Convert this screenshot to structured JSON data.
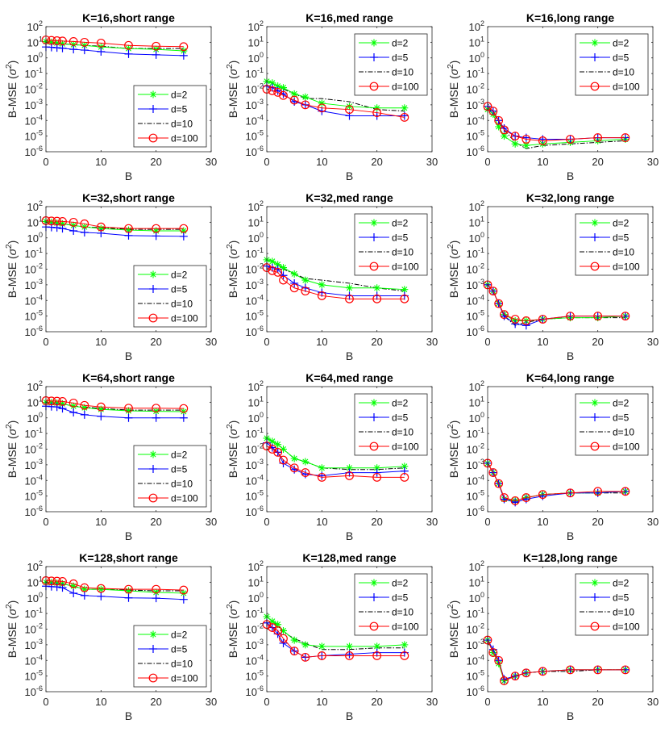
{
  "chart_data": {
    "type": "line",
    "layout": "4x3 grid",
    "x": [
      0,
      1,
      2,
      3,
      5,
      7,
      10,
      15,
      20,
      25
    ],
    "xlabel": "B",
    "ylabel": "B-MSE (σ²)",
    "xlim": [
      0,
      30
    ],
    "xticks": [
      "0",
      "10",
      "20",
      "30"
    ],
    "ylim": [
      1e-06,
      100
    ],
    "yscale": "log",
    "yticks": [
      "10^2",
      "10^1",
      "10^0",
      "10^-1",
      "10^-2",
      "10^-3",
      "10^-4",
      "10^-5",
      "10^-6"
    ],
    "legend": {
      "placement": "inside-lower-right (short range), inside-upper-right (med/long range)",
      "entries": [
        {
          "name": "d=2",
          "color": "#00ff00",
          "marker": "asterisk",
          "line": "solid"
        },
        {
          "name": "d=5",
          "color": "#0000ff",
          "marker": "plus",
          "line": "solid"
        },
        {
          "name": "d=10",
          "color": "#000000",
          "marker": "none",
          "line": "dash-dot"
        },
        {
          "name": "d=100",
          "color": "#ff0000",
          "marker": "circle",
          "line": "solid"
        }
      ]
    },
    "note": "series values are log10(B-MSE)",
    "panels": [
      {
        "title": "K=16,short range",
        "legend": "lower",
        "series": [
          {
            "name": "d=2",
            "values": [
              1.05,
              1.0,
              0.95,
              0.9,
              0.85,
              0.8,
              0.7,
              0.6,
              0.55,
              0.45
            ]
          },
          {
            "name": "d=5",
            "values": [
              0.7,
              0.68,
              0.65,
              0.62,
              0.55,
              0.5,
              0.4,
              0.25,
              0.2,
              0.15
            ]
          },
          {
            "name": "d=10",
            "values": [
              1.05,
              1.0,
              0.95,
              0.9,
              0.85,
              0.8,
              0.75,
              0.6,
              0.6,
              0.6
            ]
          },
          {
            "name": "d=100",
            "values": [
              1.15,
              1.12,
              1.1,
              1.08,
              1.05,
              1.0,
              0.95,
              0.8,
              0.75,
              0.72
            ]
          }
        ]
      },
      {
        "title": "K=16,med range",
        "legend": "upper",
        "series": [
          {
            "name": "d=2",
            "values": [
              -1.5,
              -1.6,
              -1.8,
              -1.9,
              -2.3,
              -2.5,
              -2.9,
              -3.1,
              -3.2,
              -3.2
            ]
          },
          {
            "name": "d=5",
            "values": [
              -1.8,
              -1.9,
              -2.1,
              -2.3,
              -2.8,
              -3.0,
              -3.4,
              -3.7,
              -3.7,
              -3.7
            ]
          },
          {
            "name": "d=10",
            "values": [
              -1.5,
              -1.6,
              -1.8,
              -2.0,
              -2.3,
              -2.6,
              -2.6,
              -2.8,
              -3.3,
              -3.4
            ]
          },
          {
            "name": "d=100",
            "values": [
              -2.0,
              -2.1,
              -2.2,
              -2.4,
              -2.7,
              -3.0,
              -3.2,
              -3.3,
              -3.5,
              -3.8
            ]
          }
        ]
      },
      {
        "title": "K=16,long range",
        "legend": "upper",
        "series": [
          {
            "name": "d=2",
            "values": [
              -3.3,
              -3.6,
              -4.4,
              -5.0,
              -5.5,
              -5.6,
              -5.5,
              -5.4,
              -5.3,
              -5.2
            ]
          },
          {
            "name": "d=5",
            "values": [
              -3.1,
              -3.4,
              -4.0,
              -4.5,
              -5.0,
              -5.1,
              -5.2,
              -5.2,
              -5.1,
              -5.1
            ]
          },
          {
            "name": "d=10",
            "values": [
              -3.2,
              -3.5,
              -4.1,
              -4.6,
              -5.4,
              -5.8,
              -5.6,
              -5.5,
              -5.4,
              -5.3
            ]
          },
          {
            "name": "d=100",
            "values": [
              -3.1,
              -3.4,
              -4.0,
              -4.6,
              -5.0,
              -5.2,
              -5.3,
              -5.2,
              -5.1,
              -5.1
            ]
          }
        ]
      },
      {
        "title": "K=32,short range",
        "legend": "lower",
        "series": [
          {
            "name": "d=2",
            "values": [
              1.05,
              1.0,
              0.95,
              0.9,
              0.8,
              0.7,
              0.6,
              0.5,
              0.45,
              0.45
            ]
          },
          {
            "name": "d=5",
            "values": [
              0.7,
              0.68,
              0.65,
              0.6,
              0.45,
              0.35,
              0.3,
              0.15,
              0.12,
              0.1
            ]
          },
          {
            "name": "d=10",
            "values": [
              1.05,
              1.0,
              0.95,
              0.9,
              0.8,
              0.7,
              0.65,
              0.55,
              0.55,
              0.55
            ]
          },
          {
            "name": "d=100",
            "values": [
              1.1,
              1.08,
              1.07,
              1.05,
              1.0,
              0.9,
              0.7,
              0.6,
              0.6,
              0.6
            ]
          }
        ]
      },
      {
        "title": "K=32,med range",
        "legend": "upper",
        "series": [
          {
            "name": "d=2",
            "values": [
              -1.4,
              -1.5,
              -1.7,
              -1.9,
              -2.3,
              -2.7,
              -3.0,
              -3.2,
              -3.2,
              -3.3
            ]
          },
          {
            "name": "d=5",
            "values": [
              -1.8,
              -1.9,
              -2.0,
              -2.4,
              -2.9,
              -3.2,
              -3.5,
              -3.7,
              -3.7,
              -3.7
            ]
          },
          {
            "name": "d=10",
            "values": [
              -1.4,
              -1.5,
              -1.7,
              -2.0,
              -2.3,
              -2.6,
              -2.7,
              -2.9,
              -3.2,
              -3.4
            ]
          },
          {
            "name": "d=100",
            "values": [
              -1.9,
              -2.1,
              -2.2,
              -2.7,
              -3.2,
              -3.4,
              -3.7,
              -3.9,
              -3.9,
              -3.9
            ]
          }
        ]
      },
      {
        "title": "K=32,long range",
        "legend": "upper",
        "series": [
          {
            "name": "d=2",
            "values": [
              -3.0,
              -3.4,
              -4.2,
              -4.9,
              -5.3,
              -5.3,
              -5.2,
              -5.1,
              -5.1,
              -5.0
            ]
          },
          {
            "name": "d=5",
            "values": [
              -3.0,
              -3.4,
              -4.2,
              -5.0,
              -5.5,
              -5.6,
              -5.2,
              -5.0,
              -5.0,
              -5.0
            ]
          },
          {
            "name": "d=10",
            "values": [
              -3.0,
              -3.4,
              -4.2,
              -5.0,
              -5.6,
              -5.4,
              -5.2,
              -5.1,
              -5.1,
              -5.1
            ]
          },
          {
            "name": "d=100",
            "values": [
              -3.0,
              -3.4,
              -4.2,
              -4.9,
              -5.2,
              -5.3,
              -5.2,
              -5.0,
              -5.0,
              -5.0
            ]
          }
        ]
      },
      {
        "title": "K=64,short range",
        "legend": "lower",
        "series": [
          {
            "name": "d=2",
            "values": [
              1.0,
              0.98,
              0.95,
              0.9,
              0.75,
              0.65,
              0.55,
              0.45,
              0.42,
              0.4
            ]
          },
          {
            "name": "d=5",
            "values": [
              0.75,
              0.72,
              0.7,
              0.6,
              0.35,
              0.2,
              0.1,
              0.0,
              0.0,
              0.0
            ]
          },
          {
            "name": "d=10",
            "values": [
              1.0,
              0.98,
              0.95,
              0.9,
              0.75,
              0.7,
              0.6,
              0.5,
              0.5,
              0.5
            ]
          },
          {
            "name": "d=100",
            "values": [
              1.1,
              1.08,
              1.07,
              1.05,
              0.95,
              0.8,
              0.7,
              0.62,
              0.62,
              0.6
            ]
          }
        ]
      },
      {
        "title": "K=64,med range",
        "legend": "upper",
        "series": [
          {
            "name": "d=2",
            "values": [
              -1.3,
              -1.5,
              -1.7,
              -2.0,
              -2.6,
              -2.8,
              -3.2,
              -3.2,
              -3.2,
              -3.1
            ]
          },
          {
            "name": "d=5",
            "values": [
              -1.6,
              -1.9,
              -2.2,
              -2.9,
              -3.3,
              -3.6,
              -3.7,
              -3.5,
              -3.5,
              -3.4
            ]
          },
          {
            "name": "d=10",
            "values": [
              -1.3,
              -1.5,
              -1.7,
              -2.0,
              -2.6,
              -2.8,
              -3.2,
              -3.3,
              -3.3,
              -3.2
            ]
          },
          {
            "name": "d=100",
            "values": [
              -1.8,
              -2.0,
              -2.2,
              -2.7,
              -3.2,
              -3.5,
              -3.8,
              -3.7,
              -3.8,
              -3.8
            ]
          }
        ]
      },
      {
        "title": "K=64,long range",
        "legend": "upper",
        "series": [
          {
            "name": "d=2",
            "values": [
              -2.9,
              -3.5,
              -4.2,
              -5.2,
              -5.3,
              -5.1,
              -4.9,
              -4.8,
              -4.8,
              -4.7
            ]
          },
          {
            "name": "d=5",
            "values": [
              -2.9,
              -3.5,
              -4.2,
              -5.2,
              -5.4,
              -5.2,
              -5.0,
              -4.8,
              -4.8,
              -4.7
            ]
          },
          {
            "name": "d=10",
            "values": [
              -2.9,
              -3.5,
              -4.2,
              -5.1,
              -5.3,
              -5.1,
              -4.9,
              -4.8,
              -4.8,
              -4.8
            ]
          },
          {
            "name": "d=100",
            "values": [
              -2.9,
              -3.5,
              -4.2,
              -5.1,
              -5.3,
              -5.1,
              -4.9,
              -4.8,
              -4.7,
              -4.7
            ]
          }
        ]
      },
      {
        "title": "K=128,short range",
        "legend": "lower",
        "series": [
          {
            "name": "d=2",
            "values": [
              1.0,
              0.98,
              0.95,
              0.9,
              0.75,
              0.55,
              0.55,
              0.45,
              0.35,
              0.3
            ]
          },
          {
            "name": "d=5",
            "values": [
              0.75,
              0.72,
              0.7,
              0.65,
              0.3,
              0.15,
              0.1,
              0.0,
              -0.02,
              -0.1
            ]
          },
          {
            "name": "d=10",
            "values": [
              1.0,
              0.98,
              0.95,
              0.9,
              0.75,
              0.55,
              0.55,
              0.5,
              0.45,
              0.45
            ]
          },
          {
            "name": "d=100",
            "values": [
              1.1,
              1.08,
              1.07,
              1.05,
              0.9,
              0.65,
              0.6,
              0.55,
              0.55,
              0.5
            ]
          }
        ]
      },
      {
        "title": "K=128,med range",
        "legend": "upper",
        "series": [
          {
            "name": "d=2",
            "values": [
              -1.2,
              -1.5,
              -1.7,
              -2.1,
              -2.7,
              -3.0,
              -3.1,
              -3.1,
              -3.1,
              -3.0
            ]
          },
          {
            "name": "d=5",
            "values": [
              -1.6,
              -1.9,
              -2.3,
              -2.9,
              -3.4,
              -3.8,
              -3.7,
              -3.6,
              -3.5,
              -3.5
            ]
          },
          {
            "name": "d=10",
            "values": [
              -1.2,
              -1.5,
              -1.8,
              -2.2,
              -2.6,
              -2.9,
              -3.3,
              -3.3,
              -3.2,
              -3.2
            ]
          },
          {
            "name": "d=100",
            "values": [
              -1.7,
              -1.9,
              -2.1,
              -2.6,
              -3.4,
              -3.8,
              -3.7,
              -3.7,
              -3.7,
              -3.7
            ]
          }
        ]
      },
      {
        "title": "K=128,long range",
        "legend": "upper",
        "series": [
          {
            "name": "d=2",
            "values": [
              -2.7,
              -3.5,
              -4.2,
              -5.3,
              -5.0,
              -4.8,
              -4.7,
              -4.6,
              -4.6,
              -4.6
            ]
          },
          {
            "name": "d=5",
            "values": [
              -2.7,
              -3.3,
              -4.0,
              -5.2,
              -5.0,
              -4.8,
              -4.7,
              -4.6,
              -4.6,
              -4.6
            ]
          },
          {
            "name": "d=10",
            "values": [
              -2.7,
              -3.4,
              -4.0,
              -5.3,
              -5.0,
              -4.8,
              -4.7,
              -4.7,
              -4.6,
              -4.6
            ]
          },
          {
            "name": "d=100",
            "values": [
              -2.7,
              -3.5,
              -4.0,
              -5.3,
              -5.0,
              -4.8,
              -4.7,
              -4.6,
              -4.6,
              -4.6
            ]
          }
        ]
      }
    ]
  }
}
